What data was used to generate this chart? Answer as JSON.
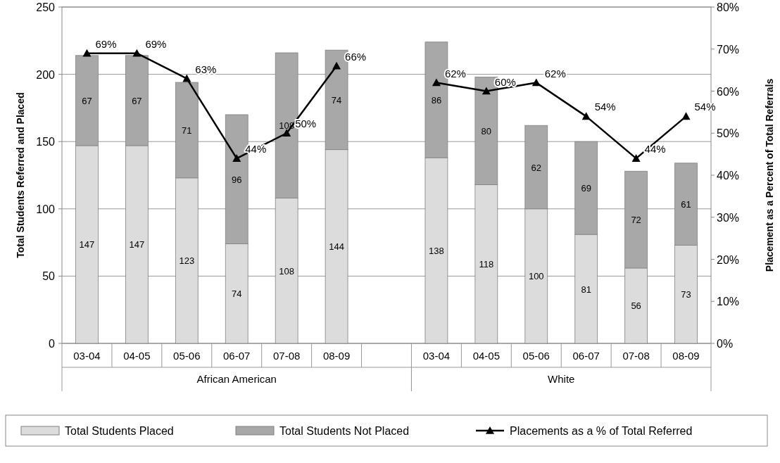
{
  "chart_data": {
    "type": "bar",
    "stacked": true,
    "ylabel": "Total Students Referred and Placed",
    "y2label": "Placement as a Percent of Total Referrals",
    "categories": [
      "03-04",
      "04-05",
      "05-06",
      "06-07",
      "07-08",
      "08-09",
      null,
      "03-04",
      "04-05",
      "05-06",
      "06-07",
      "07-08",
      "08-09"
    ],
    "annotations": [
      "African American",
      "White"
    ],
    "series": [
      {
        "name": "Total Students Placed",
        "color": "#dcdcdc",
        "values": [
          147,
          147,
          123,
          74,
          108,
          144,
          null,
          138,
          118,
          100,
          81,
          56,
          73
        ],
        "value_labels": [
          "147",
          "147",
          "123",
          "74",
          "108",
          "144",
          null,
          "138",
          "118",
          "100",
          "81",
          "56",
          "73"
        ]
      },
      {
        "name": "Total Students Not Placed",
        "color": "#a8a8a8",
        "values": [
          67,
          67,
          71,
          96,
          108,
          74,
          null,
          86,
          80,
          62,
          69,
          72,
          61
        ],
        "value_labels": [
          "67",
          "67",
          "71",
          "96",
          "108",
          "74",
          null,
          "86",
          "80",
          "62",
          "69",
          "72",
          "61"
        ]
      },
      {
        "name": "Placements as a % of Total Referred",
        "type": "line",
        "axis": "y2",
        "color": "#000000",
        "marker": "triangle",
        "values": [
          69,
          69,
          63,
          44,
          50,
          66,
          null,
          62,
          60,
          62,
          54,
          44,
          54
        ],
        "value_labels": [
          "69%",
          "69%",
          "63%",
          "44%",
          "50%",
          "66%",
          null,
          "62%",
          "60%",
          "62%",
          "54%",
          "44%",
          "54%"
        ]
      }
    ],
    "ylim": [
      0,
      250
    ],
    "yticks": [
      0,
      50,
      100,
      150,
      200,
      250
    ],
    "y2lim": [
      0,
      80
    ],
    "y2ticks": [
      {
        "value": 0,
        "label": "0%"
      },
      {
        "value": 10,
        "label": "10%"
      },
      {
        "value": 20,
        "label": "20%"
      },
      {
        "value": 30,
        "label": "30%"
      },
      {
        "value": 40,
        "label": "40%"
      },
      {
        "value": 50,
        "label": "50%"
      },
      {
        "value": 60,
        "label": "60%"
      },
      {
        "value": 70,
        "label": "70%"
      },
      {
        "value": 80,
        "label": "80%"
      }
    ],
    "grid": "y",
    "legend": "bottom"
  }
}
